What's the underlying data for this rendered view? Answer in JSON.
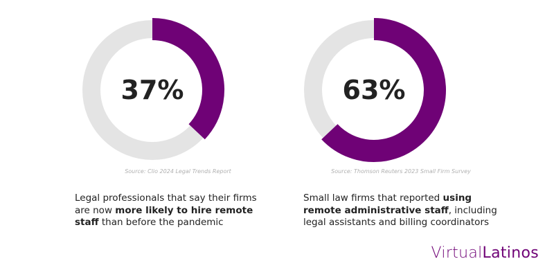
{
  "chart_data": [
    {
      "type": "pie",
      "value": 37,
      "label": "37%",
      "source": "Source: Clio 2024 Legal Trends Report",
      "caption": {
        "line1": "Legal professionals that say their firms",
        "line2_pre": "are now ",
        "line2_bold": "more likely to hire remote",
        "line3_bold": "staff",
        "line3_post": " than before the pandemic"
      }
    },
    {
      "type": "pie",
      "value": 63,
      "label": "63%",
      "source": "Source: Thomson Reuters 2023 Small Firm Survey",
      "caption": {
        "line1_pre": "Small law firms that reported ",
        "line1_bold": "using",
        "line2_bold": "remote administrative staff",
        "line2_post": ", including",
        "line3": "legal assistants and billing coordinators"
      }
    }
  ],
  "brand": {
    "part1": "Virtual",
    "part2": "Latinos"
  },
  "colors": {
    "accent": "#6f0276",
    "track": "#e4e4e4",
    "text": "#222222",
    "source": "#b0b0b0"
  }
}
